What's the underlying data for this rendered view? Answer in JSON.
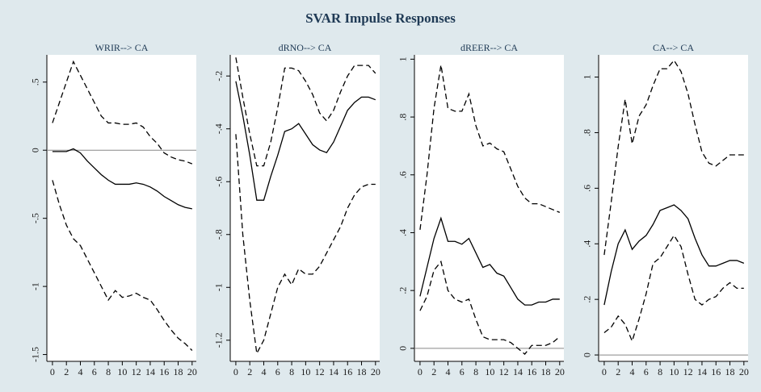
{
  "title": "SVAR Impulse Responses",
  "chart_data": [
    {
      "type": "line",
      "title": "WRIR--> CA",
      "x": [
        0,
        1,
        2,
        3,
        4,
        5,
        6,
        7,
        8,
        9,
        10,
        11,
        12,
        13,
        14,
        15,
        16,
        17,
        18,
        19,
        20
      ],
      "xlim": [
        -0.8,
        20.6
      ],
      "xticks": [
        0,
        2,
        4,
        6,
        8,
        10,
        12,
        14,
        16,
        18,
        20
      ],
      "ylim": [
        -1.55,
        0.7
      ],
      "yticks": [
        {
          "value": 0.5,
          "label": ".5"
        },
        0,
        {
          "value": -0.5,
          "label": "-.5"
        },
        -1,
        -1.5
      ],
      "reference_line": 0,
      "series": [
        {
          "style": "dashed",
          "color": "#000000",
          "values": [
            0.2,
            0.35,
            0.5,
            0.65,
            0.55,
            0.45,
            0.35,
            0.25,
            0.2,
            0.2,
            0.19,
            0.19,
            0.2,
            0.17,
            0.1,
            0.05,
            -0.02,
            -0.05,
            -0.07,
            -0.08,
            -0.1
          ]
        },
        {
          "style": "solid",
          "color": "#000000",
          "values": [
            -0.01,
            -0.01,
            -0.01,
            0.01,
            -0.02,
            -0.08,
            -0.13,
            -0.18,
            -0.22,
            -0.25,
            -0.25,
            -0.25,
            -0.24,
            -0.25,
            -0.27,
            -0.3,
            -0.34,
            -0.37,
            -0.4,
            -0.42,
            -0.43
          ]
        },
        {
          "style": "dashed",
          "color": "#000000",
          "values": [
            -0.22,
            -0.4,
            -0.55,
            -0.65,
            -0.7,
            -0.8,
            -0.9,
            -1.0,
            -1.1,
            -1.03,
            -1.08,
            -1.07,
            -1.05,
            -1.08,
            -1.1,
            -1.17,
            -1.25,
            -1.32,
            -1.38,
            -1.42,
            -1.47
          ]
        }
      ]
    },
    {
      "type": "line",
      "title": "dRNO--> CA",
      "x": [
        0,
        1,
        2,
        3,
        4,
        5,
        6,
        7,
        8,
        9,
        10,
        11,
        12,
        13,
        14,
        15,
        16,
        17,
        18,
        19,
        20
      ],
      "xlim": [
        -0.8,
        20.6
      ],
      "xticks": [
        0,
        2,
        4,
        6,
        8,
        10,
        12,
        14,
        16,
        18,
        20
      ],
      "ylim": [
        -1.28,
        -0.12
      ],
      "yticks": [
        {
          "value": -0.2,
          "label": "-.2"
        },
        {
          "value": -0.4,
          "label": "-.4"
        },
        {
          "value": -0.6,
          "label": "-.6"
        },
        {
          "value": -0.8,
          "label": "-.8"
        },
        -1,
        -1.2
      ],
      "series": [
        {
          "style": "dashed",
          "color": "#000000",
          "values": [
            -0.13,
            -0.28,
            -0.42,
            -0.54,
            -0.54,
            -0.45,
            -0.32,
            -0.17,
            -0.17,
            -0.18,
            -0.22,
            -0.27,
            -0.34,
            -0.37,
            -0.33,
            -0.26,
            -0.2,
            -0.16,
            -0.16,
            -0.16,
            -0.19
          ]
        },
        {
          "style": "solid",
          "color": "#000000",
          "values": [
            -0.22,
            -0.35,
            -0.5,
            -0.67,
            -0.67,
            -0.58,
            -0.5,
            -0.41,
            -0.4,
            -0.38,
            -0.42,
            -0.46,
            -0.48,
            -0.49,
            -0.45,
            -0.39,
            -0.33,
            -0.3,
            -0.28,
            -0.28,
            -0.29
          ]
        },
        {
          "style": "dashed",
          "color": "#000000",
          "values": [
            -0.42,
            -0.8,
            -1.05,
            -1.25,
            -1.2,
            -1.1,
            -1.0,
            -0.95,
            -0.99,
            -0.93,
            -0.95,
            -0.95,
            -0.92,
            -0.87,
            -0.82,
            -0.77,
            -0.7,
            -0.65,
            -0.62,
            -0.61,
            -0.61
          ]
        }
      ]
    },
    {
      "type": "line",
      "title": "dREER--> CA",
      "x": [
        0,
        1,
        2,
        3,
        4,
        5,
        6,
        7,
        8,
        9,
        10,
        11,
        12,
        13,
        14,
        15,
        16,
        17,
        18,
        19,
        20
      ],
      "xlim": [
        -0.8,
        20.6
      ],
      "xticks": [
        0,
        2,
        4,
        6,
        8,
        10,
        12,
        14,
        16,
        18,
        20
      ],
      "ylim": [
        -0.045,
        1.015
      ],
      "yticks": [
        0,
        {
          "value": 0.2,
          "label": ".2"
        },
        {
          "value": 0.4,
          "label": ".4"
        },
        {
          "value": 0.6,
          "label": ".6"
        },
        {
          "value": 0.8,
          "label": ".8"
        },
        1
      ],
      "reference_line": 0,
      "series": [
        {
          "style": "dashed",
          "color": "#000000",
          "values": [
            0.41,
            0.6,
            0.83,
            0.98,
            0.83,
            0.82,
            0.82,
            0.88,
            0.77,
            0.7,
            0.71,
            0.69,
            0.68,
            0.62,
            0.56,
            0.52,
            0.5,
            0.5,
            0.49,
            0.48,
            0.47
          ]
        },
        {
          "style": "solid",
          "color": "#000000",
          "values": [
            0.18,
            0.28,
            0.38,
            0.45,
            0.37,
            0.37,
            0.36,
            0.38,
            0.33,
            0.28,
            0.29,
            0.26,
            0.25,
            0.21,
            0.17,
            0.15,
            0.15,
            0.16,
            0.16,
            0.17,
            0.17
          ]
        },
        {
          "style": "dashed",
          "color": "#000000",
          "values": [
            0.13,
            0.18,
            0.27,
            0.3,
            0.2,
            0.17,
            0.16,
            0.17,
            0.1,
            0.04,
            0.03,
            0.03,
            0.03,
            0.02,
            0,
            -0.02,
            0.01,
            0.01,
            0.01,
            0.02,
            0.04
          ]
        }
      ]
    },
    {
      "type": "line",
      "title": "CA--> CA",
      "x": [
        0,
        1,
        2,
        3,
        4,
        5,
        6,
        7,
        8,
        9,
        10,
        11,
        12,
        13,
        14,
        15,
        16,
        17,
        18,
        19,
        20
      ],
      "xlim": [
        -0.8,
        20.6
      ],
      "xticks": [
        0,
        2,
        4,
        6,
        8,
        10,
        12,
        14,
        16,
        18,
        20
      ],
      "ylim": [
        -0.023,
        1.08
      ],
      "yticks": [
        0,
        {
          "value": 0.2,
          "label": ".2"
        },
        {
          "value": 0.4,
          "label": ".4"
        },
        {
          "value": 0.6,
          "label": ".6"
        },
        {
          "value": 0.8,
          "label": ".8"
        },
        1
      ],
      "reference_line": 0,
      "series": [
        {
          "style": "dashed",
          "color": "#000000",
          "values": [
            0.36,
            0.55,
            0.75,
            0.92,
            0.76,
            0.86,
            0.9,
            0.97,
            1.03,
            1.03,
            1.06,
            1.02,
            0.94,
            0.83,
            0.73,
            0.69,
            0.68,
            0.7,
            0.72,
            0.72,
            0.72
          ]
        },
        {
          "style": "solid",
          "color": "#000000",
          "values": [
            0.18,
            0.3,
            0.4,
            0.45,
            0.38,
            0.41,
            0.43,
            0.47,
            0.52,
            0.53,
            0.54,
            0.52,
            0.49,
            0.42,
            0.36,
            0.32,
            0.32,
            0.33,
            0.34,
            0.34,
            0.33
          ]
        },
        {
          "style": "dashed",
          "color": "#000000",
          "values": [
            0.08,
            0.1,
            0.14,
            0.11,
            0.05,
            0.13,
            0.22,
            0.33,
            0.35,
            0.39,
            0.43,
            0.39,
            0.29,
            0.2,
            0.18,
            0.2,
            0.21,
            0.24,
            0.26,
            0.24,
            0.24
          ]
        }
      ]
    }
  ]
}
